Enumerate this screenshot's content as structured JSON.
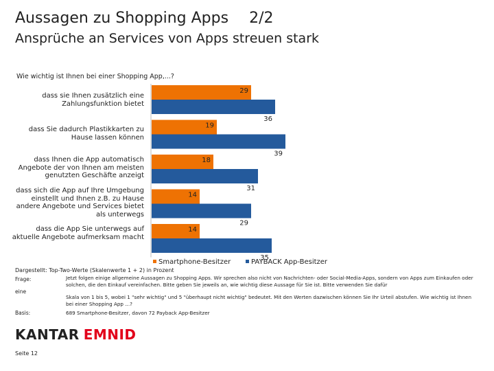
{
  "header": {
    "title": "Aussagen zu Shopping Apps",
    "page": "2/2",
    "subtitle": "Ansprüche an Services von Apps streuen stark"
  },
  "chart_data": {
    "type": "bar",
    "orientation": "horizontal",
    "title": "Wie wichtig ist Ihnen bei einer Shopping App,...?",
    "categories": [
      "dass sie Ihnen zusätzlich eine Zahlungsfunktion bietet",
      "dass Sie dadurch Plastikkarten zu Hause lassen können",
      "dass Ihnen die App automatisch Angebote der von Ihnen am meisten genutzten Geschäfte anzeigt",
      "dass sich die App auf Ihre Umgebung einstellt und Ihnen z.B. zu Hause andere Angebote und Services bietet als unterwegs",
      "dass die App Sie unterwegs auf aktuelle Angebote aufmerksam macht"
    ],
    "series": [
      {
        "name": "Smartphone-Besitzer",
        "values": [
          29,
          19,
          18,
          14,
          14
        ],
        "color": "#ee7203"
      },
      {
        "name": "PAYBACK App-Besitzer",
        "values": [
          36,
          39,
          31,
          29,
          35
        ],
        "color": "#245a9c"
      }
    ],
    "xlim": [
      0,
      40
    ],
    "legend_position": "bottom"
  },
  "notes": {
    "dargestellt": "Dargestellt: Top-Two-Werte (Skalenwerte 1 + 2) in Prozent",
    "frage_key": "Frage:",
    "frage_text": "Jetzt folgen einige allgemeine Aussagen zu Shopping Apps. Wir sprechen also nicht von Nachrichten- oder Social-Media-Apps, sondern von Apps zum Einkaufen oder solchen, die den Einkauf vereinfachen. Bitte geben Sie jeweils an, wie wichtig diese Aussage für Sie ist. Bitte verwenden Sie dafür",
    "eine_key": "eine",
    "frage_text2": "Skala von 1 bis 5, wobei 1 \"sehr wichtig\" und 5 \"überhaupt nicht wichtig\" bedeutet. Mit den Werten dazwischen können Sie Ihr Urteil abstufen. Wie wichtig ist Ihnen bei einer Shopping App ...?",
    "basis_key": "Basis:",
    "basis_text": "689 Smartphone-Besitzer, davon 72 Payback App-Besitzer"
  },
  "logo": {
    "kantar": "KANTAR",
    "emnid": "EMNID"
  },
  "footer": {
    "page_label": "Seite 12"
  }
}
